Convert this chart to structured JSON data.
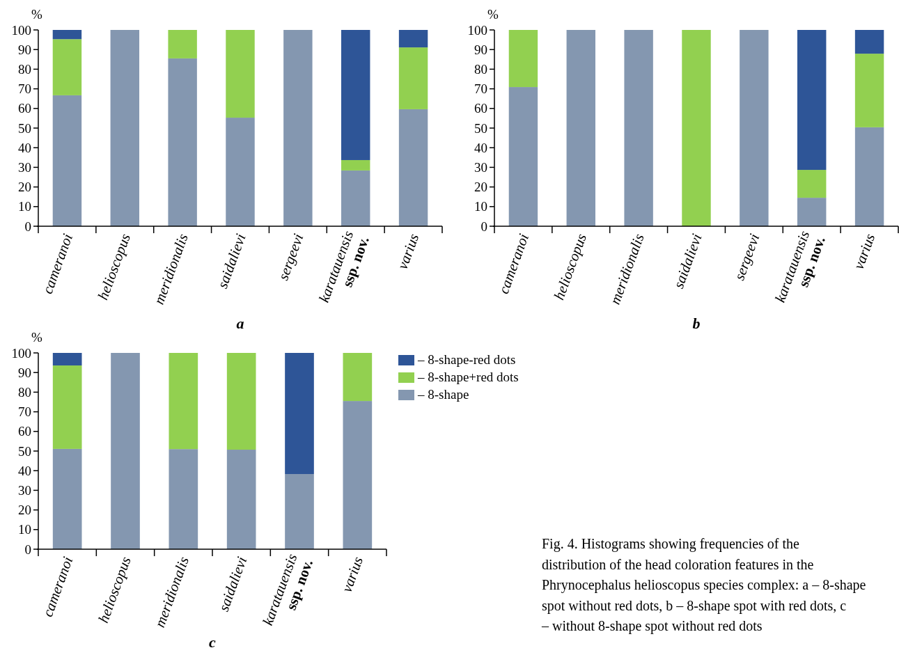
{
  "chart_data": [
    {
      "type": "bar",
      "stacked": true,
      "title": "a",
      "ylabel": "%",
      "categories": [
        "cameranoi",
        "helioscopus",
        "meridionalis",
        "saidalievi",
        "sergeevi",
        "karatauensis\nssp. nov.",
        "varius"
      ],
      "ylim": [
        0,
        100
      ],
      "yticks": [
        0,
        10,
        20,
        30,
        40,
        50,
        60,
        70,
        80,
        90,
        100
      ],
      "series": [
        {
          "color": "#8497b0",
          "values": [
            66.7,
            100,
            85.5,
            55.3,
            100,
            28.4,
            59.6
          ]
        },
        {
          "color": "#92d050",
          "values": [
            28.6,
            0,
            14.5,
            44.7,
            0,
            5.3,
            31.5
          ]
        },
        {
          "color": "#2e5597",
          "values": [
            4.7,
            0,
            0,
            0,
            0,
            66.3,
            8.9
          ]
        }
      ]
    },
    {
      "type": "bar",
      "stacked": true,
      "title": "b",
      "ylabel": "%",
      "categories": [
        "cameranoi",
        "helioscopus",
        "meridionalis",
        "saidalievi",
        "sergeevi",
        "karatauensis\nssp. nov.",
        "varius"
      ],
      "ylim": [
        0,
        100
      ],
      "yticks": [
        0,
        10,
        20,
        30,
        40,
        50,
        60,
        70,
        80,
        90,
        100
      ],
      "series": [
        {
          "color": "#8497b0",
          "values": [
            70.9,
            100,
            100,
            0,
            100,
            14.5,
            50.4
          ]
        },
        {
          "color": "#92d050",
          "values": [
            29.1,
            0,
            0,
            100,
            0,
            14.2,
            37.5
          ]
        },
        {
          "color": "#2e5597",
          "values": [
            0,
            0,
            0,
            0,
            0,
            71.3,
            12.1
          ]
        }
      ]
    },
    {
      "type": "bar",
      "stacked": true,
      "title": "c",
      "ylabel": "%",
      "legend": "right",
      "categories": [
        "cameranoi",
        "helioscopus",
        "meridionalis",
        "saidalievi",
        "karatauensis\nssp. nov.",
        "varius"
      ],
      "ylim": [
        0,
        100
      ],
      "yticks": [
        0,
        10,
        20,
        30,
        40,
        50,
        60,
        70,
        80,
        90,
        100
      ],
      "series": [
        {
          "name": "– 8-shape",
          "color": "#8497b0",
          "values": [
            51.1,
            100,
            51,
            50.7,
            38.3,
            75.5
          ]
        },
        {
          "name": "– 8-shape+red dots",
          "color": "#92d050",
          "values": [
            42.5,
            0,
            49,
            49.3,
            0,
            24.5
          ]
        },
        {
          "name": "– 8-shape-red dots",
          "color": "#2e5597",
          "values": [
            6.4,
            0,
            0,
            0,
            61.7,
            0
          ]
        }
      ],
      "annotations": [
        "Fig. 4. Histograms showing frequencies of the distribution of the head coloration features in the Phrynocephalus helioscopus species complex: a – 8-shape spot without red dots, b – 8-shape spot with red dots, c – without 8-shape spot without red dots"
      ]
    }
  ]
}
